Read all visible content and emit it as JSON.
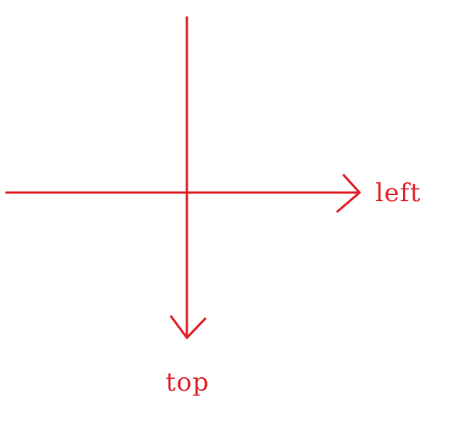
{
  "diagram": {
    "labels": {
      "horizontal_axis": "left",
      "vertical_axis": "top"
    },
    "colors": {
      "stroke": "#e0242b",
      "text": "#e0242b"
    }
  }
}
